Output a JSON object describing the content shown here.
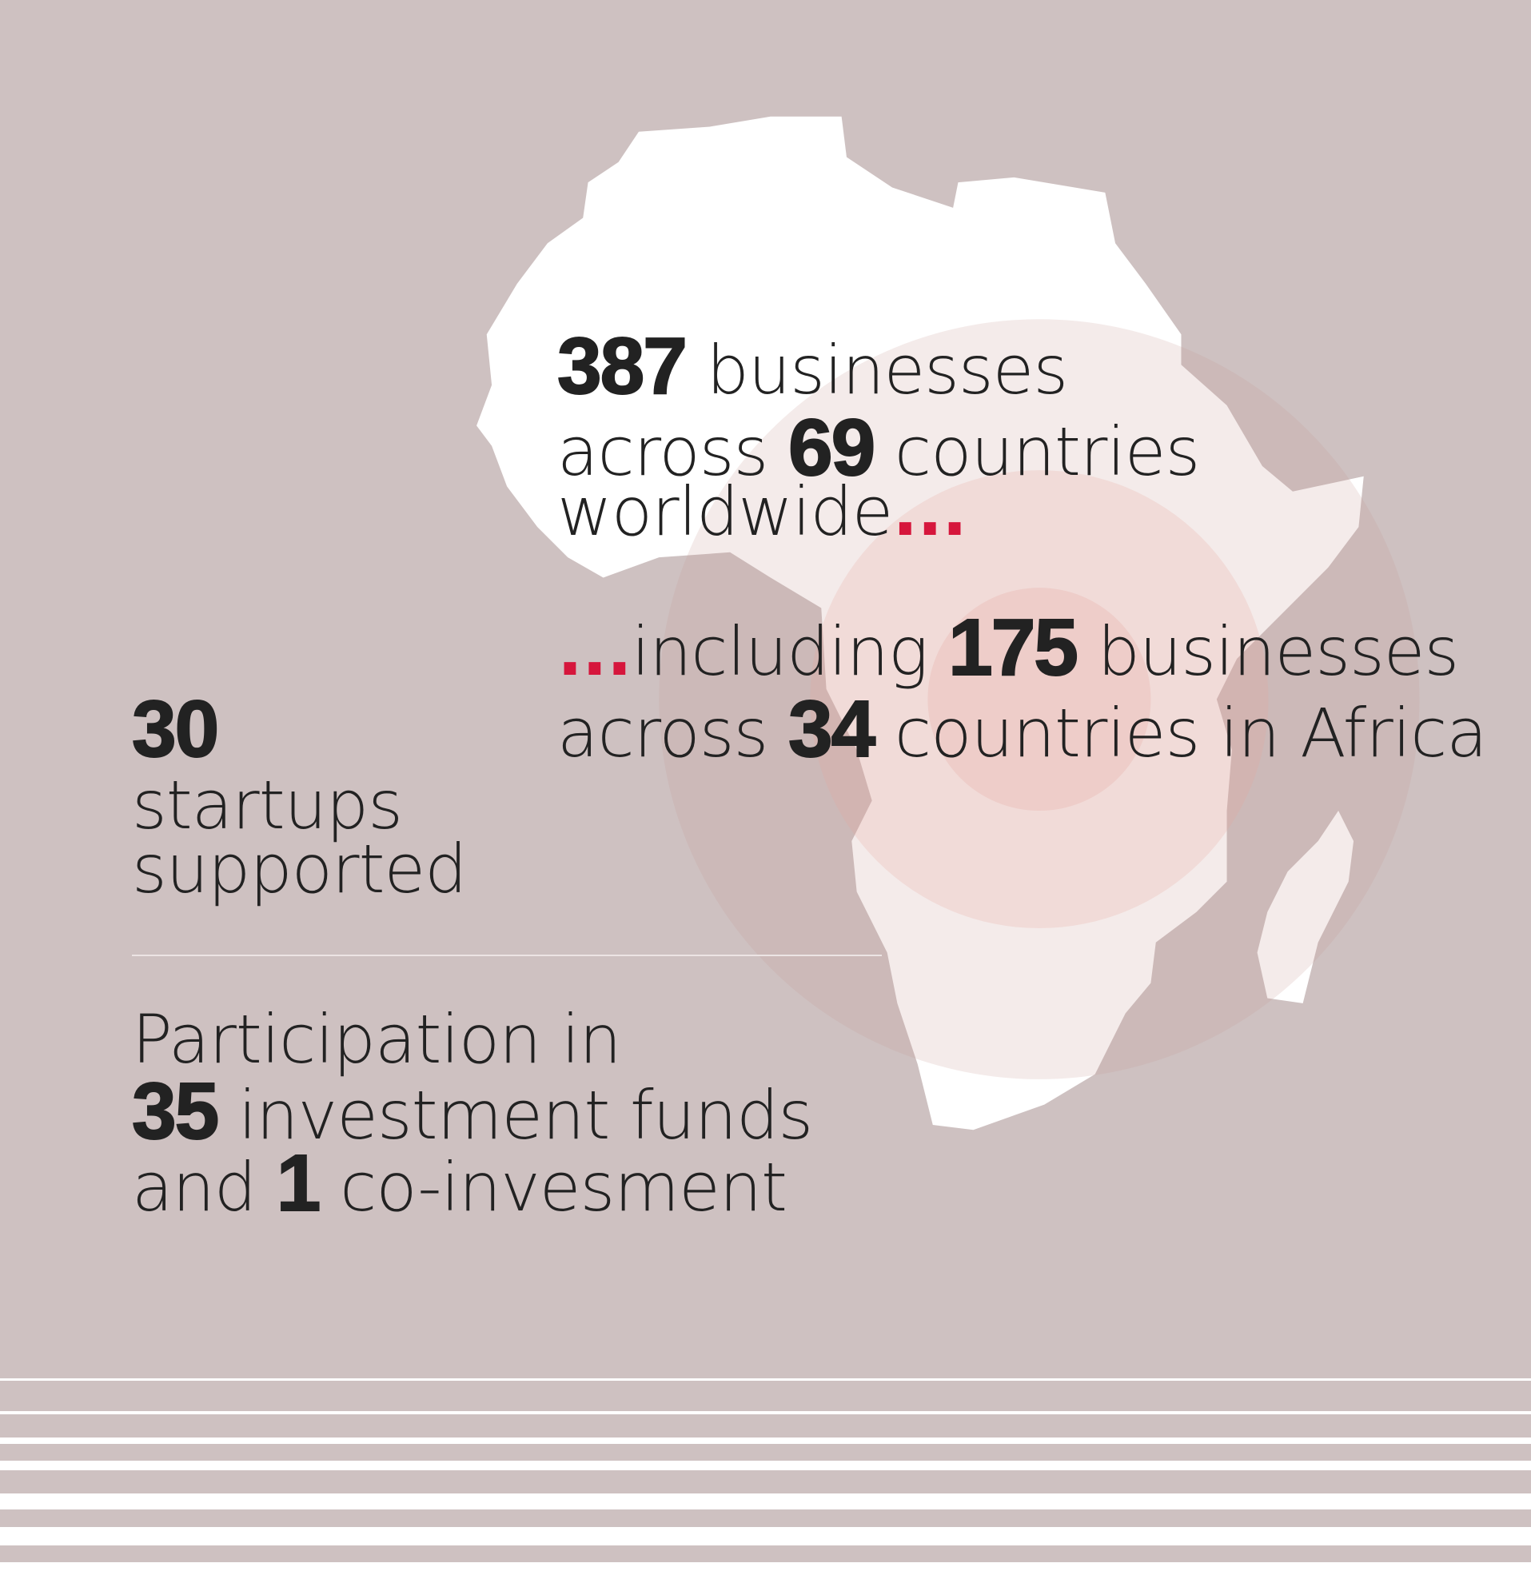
{
  "colors": {
    "background": "#cec1c1",
    "accent_dots": "#d6163c",
    "text": "#222222",
    "map": "#ffffff"
  },
  "global": {
    "count": "387",
    "line1_rest": "businesses",
    "line2_pre": "across",
    "countries": "69",
    "line2_rest": "countries",
    "line3": "worldwide",
    "dots": "..."
  },
  "africa": {
    "dots": "...",
    "pre": "including",
    "count": "175",
    "line1_rest": "businesses",
    "line2_pre": "across",
    "countries": "34",
    "line2_rest": "countries in Africa"
  },
  "startups": {
    "count": "30",
    "line1": "startups",
    "line2": "supported"
  },
  "funds": {
    "line1": "Participation in",
    "count": "35",
    "line2_rest": "investment funds",
    "line3_pre": "and",
    "coinvest_count": "1",
    "line3_rest": "co-invesment"
  }
}
